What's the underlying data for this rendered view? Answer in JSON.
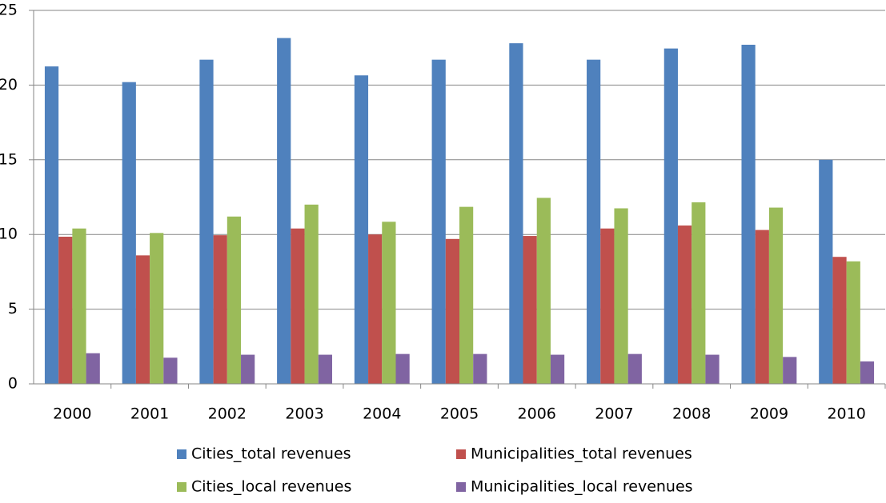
{
  "chart_data": {
    "type": "bar",
    "categories": [
      "2000",
      "2001",
      "2002",
      "2003",
      "2004",
      "2005",
      "2006",
      "2007",
      "2008",
      "2009",
      "2010"
    ],
    "series": [
      {
        "name": "Cities_total revenues",
        "color": "#4f81bd",
        "values": [
          21.25,
          20.2,
          21.7,
          23.15,
          20.65,
          21.7,
          22.8,
          21.7,
          22.45,
          22.7,
          15.0
        ]
      },
      {
        "name": "Municipalities_total revenues",
        "color": "#c0504d",
        "values": [
          9.85,
          8.6,
          9.95,
          10.4,
          10.0,
          9.7,
          9.9,
          10.4,
          10.6,
          10.3,
          8.5
        ]
      },
      {
        "name": "Cities_local revenues",
        "color": "#9bbb59",
        "values": [
          10.4,
          10.1,
          11.2,
          12.0,
          10.85,
          11.85,
          12.45,
          11.75,
          12.15,
          11.8,
          8.2
        ]
      },
      {
        "name": "Municipalities_local revenues",
        "color": "#8064a2",
        "values": [
          2.05,
          1.75,
          1.95,
          1.95,
          2.0,
          2.0,
          1.95,
          2.0,
          1.95,
          1.8,
          1.5
        ]
      }
    ],
    "ylim": [
      0,
      25
    ],
    "yticks": [
      0,
      5,
      10,
      15,
      20,
      25
    ],
    "grid": true
  }
}
